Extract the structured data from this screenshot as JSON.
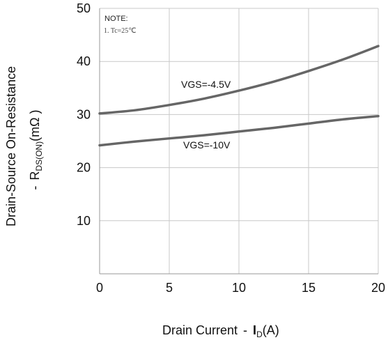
{
  "chart_data": {
    "type": "line",
    "title": "",
    "xlabel": "Drain Current",
    "xlabel_symbol": "I",
    "xlabel_subscript": "D",
    "xlabel_unit": "(A)",
    "ylabel_line1": "Drain-Source On-Resistance",
    "ylabel_symbol": "R",
    "ylabel_subscript": "DS(ON)",
    "ylabel_unit": "(mΩ )",
    "dash": "-",
    "xlim": [
      0,
      20
    ],
    "ylim": [
      0,
      50
    ],
    "x_ticks": [
      0,
      5,
      10,
      15,
      20
    ],
    "y_ticks": [
      10,
      20,
      30,
      40,
      50
    ],
    "grid": true,
    "note_title": "NOTE:",
    "note_line": "1. Tc=25℃",
    "series": [
      {
        "name": "VGS=-4.5V",
        "color": "#666666",
        "x": [
          0,
          2.5,
          5,
          7.5,
          10,
          12.5,
          15,
          17.5,
          20
        ],
        "y": [
          30.2,
          30.8,
          31.8,
          33.0,
          34.5,
          36.2,
          38.2,
          40.4,
          42.9
        ]
      },
      {
        "name": "VGS=-10V",
        "color": "#666666",
        "x": [
          0,
          2.5,
          5,
          7.5,
          10,
          12.5,
          15,
          17.5,
          20
        ],
        "y": [
          24.2,
          24.9,
          25.5,
          26.1,
          26.8,
          27.5,
          28.3,
          29.1,
          29.7
        ]
      }
    ]
  }
}
